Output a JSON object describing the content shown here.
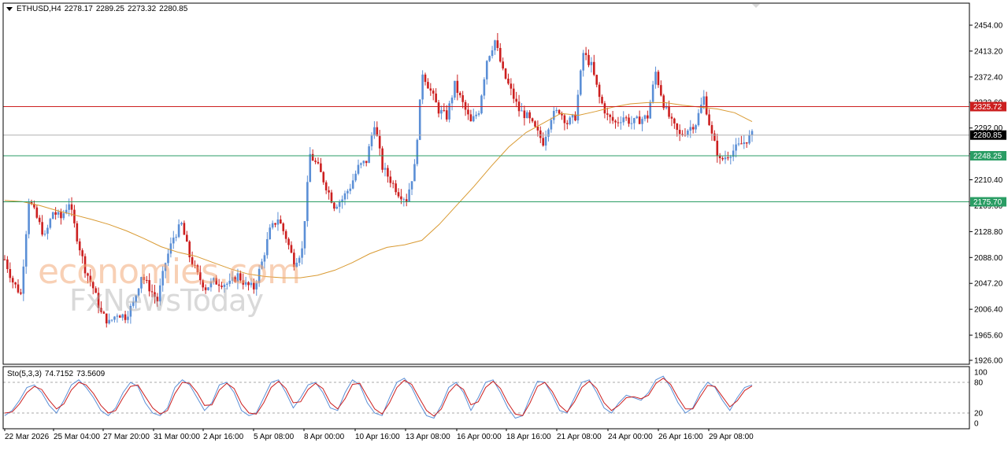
{
  "header": {
    "symbol": "ETHUSD,H4",
    "open": "2278.17",
    "high": "2289.25",
    "low": "2273.32",
    "close": "2280.85"
  },
  "watermark": {
    "line1": "economies.com",
    "line2": "FxNewsToday"
  },
  "chart_data": [
    {
      "type": "candlestick",
      "symbol": "ETHUSD",
      "timeframe": "H4",
      "title": "",
      "xlabel": "",
      "ylabel": "",
      "ylim": [
        1926.0,
        2454.0
      ],
      "y_ticks": [
        "2454.00",
        "2413.20",
        "2372.40",
        "2332.60",
        "2292.00",
        "2251.20",
        "2210.40",
        "2169.60",
        "2128.80",
        "2088.00",
        "2047.20",
        "2006.40",
        "1965.60",
        "1926.00"
      ],
      "x_ticks": [
        "22 Mar 2026",
        "25 Mar 04:00",
        "27 Mar 20:00",
        "31 Mar 00:00",
        "2 Apr 16:00",
        "5 Apr 08:00",
        "8 Apr 00:00",
        "10 Apr 16:00",
        "13 Apr 08:00",
        "16 Apr 00:00",
        "18 Apr 16:00",
        "21 Apr 08:00",
        "24 Apr 00:00",
        "26 Apr 16:00",
        "29 Apr 08:00"
      ],
      "bull_color": "#5b8fd6",
      "bear_color": "#cc1f1f",
      "close_path": [
        2085,
        2050,
        2030,
        2180,
        2150,
        2120,
        2160,
        2150,
        2175,
        2120,
        2070,
        2040,
        2000,
        1985,
        2000,
        1995,
        2015,
        2060,
        2040,
        2020,
        2080,
        2120,
        2140,
        2090,
        2060,
        2040,
        2050,
        2048,
        2046,
        2060,
        2045,
        2040,
        2080,
        2130,
        2150,
        2120,
        2080,
        2100,
        2250,
        2230,
        2200,
        2170,
        2180,
        2200,
        2230,
        2240,
        2300,
        2230,
        2210,
        2190,
        2180,
        2230,
        2380,
        2350,
        2320,
        2310,
        2360,
        2330,
        2300,
        2320,
        2400,
        2430,
        2380,
        2350,
        2320,
        2310,
        2290,
        2270,
        2310,
        2320,
        2300,
        2310,
        2410,
        2390,
        2340,
        2310,
        2300,
        2310,
        2300,
        2305,
        2310,
        2380,
        2330,
        2300,
        2280,
        2290,
        2300,
        2340,
        2280,
        2240,
        2250,
        2260,
        2270,
        2280.85
      ],
      "series": [
        {
          "name": "MA",
          "color": "#d99a32",
          "values": [
            2178,
            2176,
            2170,
            2162,
            2155,
            2148,
            2140,
            2130,
            2118,
            2105,
            2096,
            2090,
            2080,
            2070,
            2062,
            2058,
            2056,
            2056,
            2060,
            2068,
            2080,
            2094,
            2104,
            2108,
            2115,
            2140,
            2170,
            2200,
            2232,
            2262,
            2285,
            2300,
            2315,
            2312,
            2318,
            2325,
            2330,
            2332,
            2332,
            2328,
            2325,
            2322,
            2316,
            2302
          ]
        }
      ],
      "levels": [
        {
          "label": "2325.72",
          "value": 2325.72,
          "color": "#cc1f1f"
        },
        {
          "label": "2280.85",
          "value": 2280.85,
          "color": "#b0b0b0",
          "tag": "current"
        },
        {
          "label": "2248.25",
          "value": 2248.25,
          "color": "#2a9d64"
        },
        {
          "label": "2175.70",
          "value": 2175.7,
          "color": "#2a9d64"
        }
      ]
    },
    {
      "type": "line",
      "title": "Sto(5,3,3)",
      "main_value": "74.7152",
      "signal_value": "73.5609",
      "ylim": [
        0,
        100
      ],
      "y_ticks": [
        "100",
        "80",
        "20",
        "0"
      ],
      "levels": [
        80,
        20
      ],
      "series": [
        {
          "name": "Main",
          "color": "#5b8fd6",
          "values": [
            15,
            25,
            45,
            70,
            75,
            60,
            35,
            20,
            45,
            75,
            85,
            70,
            50,
            25,
            15,
            30,
            60,
            80,
            72,
            40,
            20,
            15,
            30,
            70,
            85,
            75,
            50,
            25,
            40,
            75,
            80,
            60,
            25,
            15,
            20,
            50,
            80,
            85,
            60,
            30,
            50,
            75,
            80,
            60,
            30,
            25,
            60,
            85,
            75,
            40,
            20,
            15,
            50,
            80,
            88,
            70,
            40,
            15,
            10,
            35,
            70,
            80,
            60,
            25,
            50,
            80,
            85,
            60,
            30,
            10,
            15,
            50,
            82,
            80,
            55,
            25,
            20,
            50,
            80,
            85,
            60,
            30,
            20,
            40,
            55,
            50,
            45,
            60,
            85,
            92,
            70,
            40,
            20,
            30,
            60,
            80,
            70,
            45,
            25,
            50,
            70,
            75
          ]
        },
        {
          "name": "Signal",
          "color": "#cc1f1f",
          "values": [
            20,
            22,
            38,
            60,
            72,
            66,
            45,
            28,
            38,
            65,
            80,
            75,
            58,
            35,
            20,
            25,
            50,
            72,
            75,
            52,
            30,
            18,
            25,
            58,
            80,
            78,
            60,
            35,
            36,
            65,
            78,
            68,
            38,
            20,
            18,
            40,
            70,
            82,
            68,
            40,
            42,
            66,
            78,
            68,
            40,
            28,
            48,
            76,
            78,
            52,
            28,
            18,
            40,
            70,
            84,
            76,
            50,
            25,
            14,
            28,
            60,
            76,
            66,
            36,
            42,
            70,
            82,
            68,
            40,
            18,
            15,
            40,
            72,
            80,
            62,
            35,
            22,
            42,
            70,
            82,
            68,
            40,
            25,
            35,
            50,
            52,
            48,
            55,
            78,
            88,
            76,
            50,
            28,
            28,
            52,
            74,
            72,
            52,
            32,
            44,
            64,
            73
          ]
        }
      ]
    }
  ]
}
